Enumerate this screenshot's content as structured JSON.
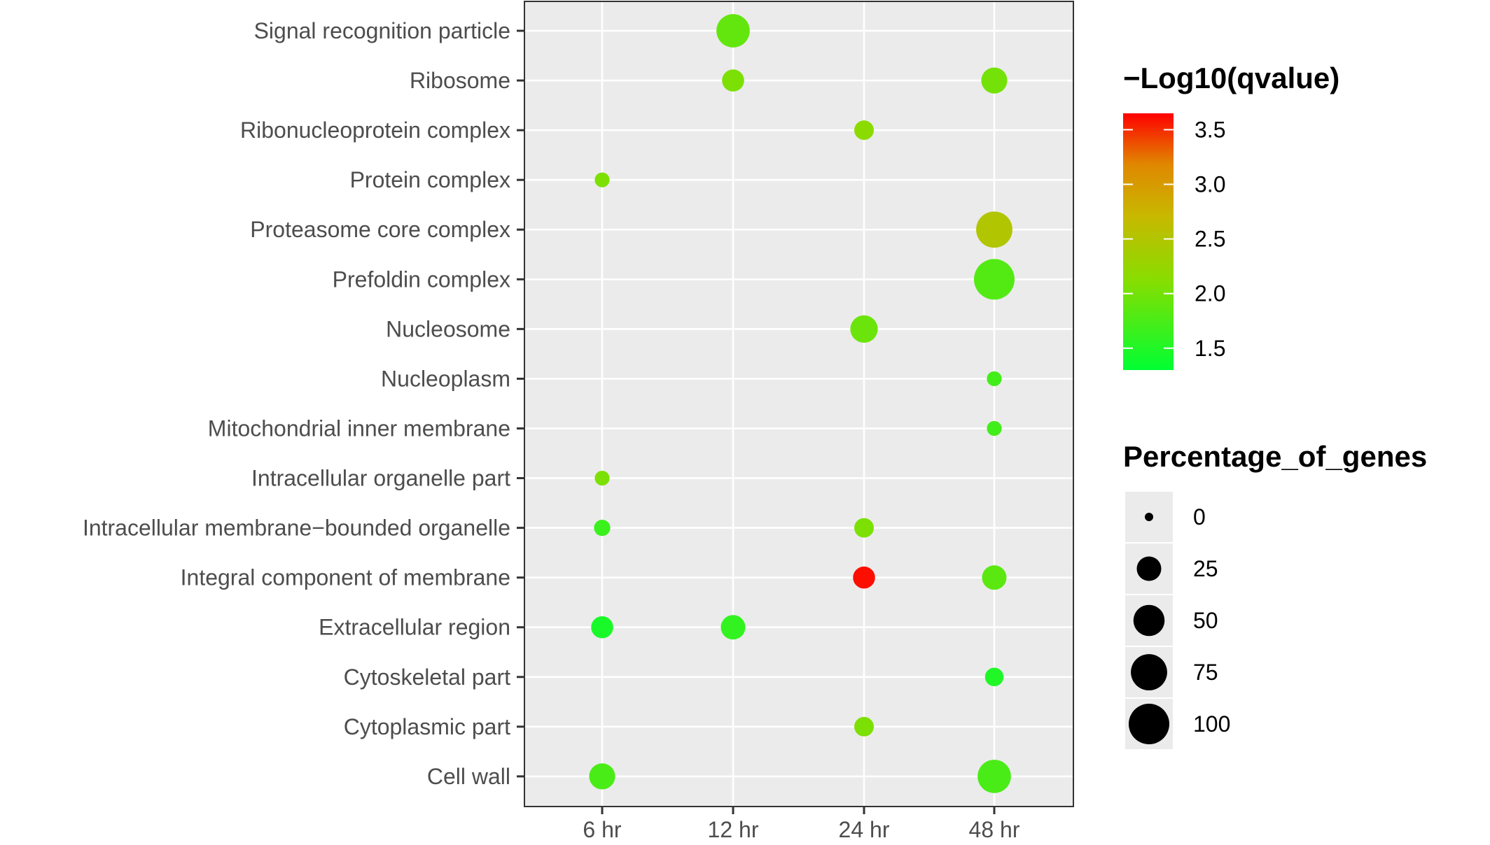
{
  "chart_data": {
    "type": "scatter",
    "title": "",
    "xlabel": "",
    "ylabel": "",
    "x_categories": [
      "6 hr",
      "12 hr",
      "24 hr",
      "48 hr"
    ],
    "y_categories": [
      "Signal recognition particle",
      "Ribosome",
      "Ribonucleoprotein complex",
      "Protein complex",
      "Proteasome core complex",
      "Prefoldin complex",
      "Nucleosome",
      "Nucleoplasm",
      "Mitochondrial inner membrane",
      "Intracellular organelle part",
      "Intracellular membrane−bounded organelle",
      "Integral component of membrane",
      "Extracellular region",
      "Cytoskeletal part",
      "Cytoplasmic part",
      "Cell wall"
    ],
    "points": [
      {
        "x": "12 hr",
        "y": "Signal recognition particle",
        "qvalue_log": 1.9,
        "percentage": 60
      },
      {
        "x": "12 hr",
        "y": "Ribosome",
        "qvalue_log": 2.05,
        "percentage": 18
      },
      {
        "x": "48 hr",
        "y": "Ribosome",
        "qvalue_log": 2.0,
        "percentage": 30
      },
      {
        "x": "24 hr",
        "y": "Ribonucleoprotein complex",
        "qvalue_log": 2.15,
        "percentage": 12
      },
      {
        "x": "6 hr",
        "y": "Protein complex",
        "qvalue_log": 2.05,
        "percentage": 4
      },
      {
        "x": "48 hr",
        "y": "Proteasome core complex",
        "qvalue_log": 2.5,
        "percentage": 75
      },
      {
        "x": "48 hr",
        "y": "Prefoldin complex",
        "qvalue_log": 1.8,
        "percentage": 100
      },
      {
        "x": "24 hr",
        "y": "Nucleosome",
        "qvalue_log": 1.95,
        "percentage": 35
      },
      {
        "x": "48 hr",
        "y": "Nucleoplasm",
        "qvalue_log": 1.7,
        "percentage": 4
      },
      {
        "x": "48 hr",
        "y": "Mitochondrial inner membrane",
        "qvalue_log": 1.7,
        "percentage": 4
      },
      {
        "x": "6 hr",
        "y": "Intracellular organelle part",
        "qvalue_log": 2.05,
        "percentage": 4
      },
      {
        "x": "6 hr",
        "y": "Intracellular membrane−bounded organelle",
        "qvalue_log": 1.65,
        "percentage": 6
      },
      {
        "x": "24 hr",
        "y": "Intracellular membrane−bounded organelle",
        "qvalue_log": 2.05,
        "percentage": 12
      },
      {
        "x": "24 hr",
        "y": "Integral component of membrane",
        "qvalue_log": 3.6,
        "percentage": 18
      },
      {
        "x": "48 hr",
        "y": "Integral component of membrane",
        "qvalue_log": 1.85,
        "percentage": 25
      },
      {
        "x": "6 hr",
        "y": "Extracellular region",
        "qvalue_log": 1.45,
        "percentage": 18
      },
      {
        "x": "12 hr",
        "y": "Extracellular region",
        "qvalue_log": 1.6,
        "percentage": 25
      },
      {
        "x": "48 hr",
        "y": "Cytoskeletal part",
        "qvalue_log": 1.5,
        "percentage": 10
      },
      {
        "x": "24 hr",
        "y": "Cytoplasmic part",
        "qvalue_log": 2.05,
        "percentage": 12
      },
      {
        "x": "6 hr",
        "y": "Cell wall",
        "qvalue_log": 1.75,
        "percentage": 30
      },
      {
        "x": "48 hr",
        "y": "Cell wall",
        "qvalue_log": 1.75,
        "percentage": 60
      }
    ],
    "color_legend": {
      "title": "−Log10(qvalue)",
      "ticks": [
        "1.5",
        "2.0",
        "2.5",
        "3.0",
        "3.5"
      ],
      "range": [
        1.3,
        3.65
      ],
      "low_color": "#00ff33",
      "mid_color": "#88dd00",
      "high_color": "#ff0000"
    },
    "size_legend": {
      "title": "Percentage_of_genes",
      "ticks": [
        "0",
        "25",
        "50",
        "75",
        "100"
      ]
    },
    "grid": true,
    "legend_position": "right"
  }
}
